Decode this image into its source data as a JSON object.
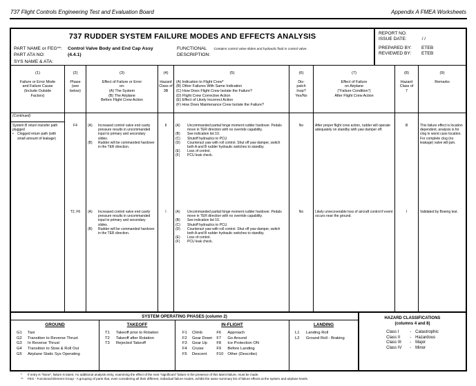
{
  "page_header": {
    "left": "737 Flight Controls Engineering Test and Evaluation Board",
    "right": "Appendix A   FMEA Worksheets"
  },
  "title_block": {
    "title": "737 RUDDER SYSTEM FAILURE MODES AND EFFECTS ANALYSIS",
    "part_name_label": "PART NAME or FEG**:",
    "part_name_value": "Control Valve Body and End Cap Assy",
    "part_ata_label": "PART ATA NO:",
    "part_ata_value": "(4.4.1)",
    "sys_label": "SYS NAME & ATA:",
    "functional_label_line1": "FUNCTIONAL",
    "functional_label_line2": "DESCRIPTION:",
    "functional_value": "Contains control valve slides and hydraulic fluid in control valve."
  },
  "report_box": {
    "report_no_label": "REPORT NO.",
    "issue_date_label": "ISSUE DATE:",
    "issue_date_value": "/   /",
    "prepared_label": "PREPARED BY:",
    "prepared_value": "ETEB",
    "reviewed_label": "REVIEWED BY:",
    "reviewed_value": "ETEB"
  },
  "table": {
    "headers": [
      {
        "num": "(1)",
        "text": "Failure or Error Mode\nand Failure Cause\n(Include Outside\nFactors)"
      },
      {
        "num": "(2)",
        "text": "Phase\n(see\nbelow)"
      },
      {
        "num": "(3)",
        "text": "Effect of Failure or Error\non:\n(A)  The System\n(B)  The Airplane\nBefore Flight Crew Action"
      },
      {
        "num": "(4)",
        "text": "Hazard\nClass of\n3B"
      },
      {
        "num": "(5)",
        "text": "(A)  Indication to Flight Crew*\n(B)  Other Failures With Same Indication\n(C)  How Does Flight Crew Isolate the Failure?\n(D)  Flight Crew Corrective Action\n(E)  Effect of Likely Incorrect Action\n(F)  How Does Maintenance Crew Isolate the Failure?"
      },
      {
        "num": "(6)",
        "text": "Dis-\npatch\nInop?\nYes/No"
      },
      {
        "num": "(7)",
        "text": "Effect of Failure\non Airplane\n(\"Failure Condition\")\nAfter Flight Crew Action"
      },
      {
        "num": "(8)",
        "text": "Hazard\nClass of\n7"
      },
      {
        "num": "(9)",
        "text": "Remarks"
      }
    ],
    "continued_label": "(Continued)",
    "rows": [
      {
        "failure_mode": {
          "title": "System B return transfer path plugged",
          "bullet_char": "•",
          "bullet_text": "Clogged return path (with small amount of leakage)"
        },
        "phase": "F4",
        "effect": [
          {
            "letter": "(A)",
            "text": "Increased control valve end cavity pressure results in uncommanded input to primary and secondary slides."
          },
          {
            "letter": "(B)",
            "text": "Rudder will be commanded hardover in the TER direction."
          }
        ],
        "hazard_3b": "II",
        "indication": [
          {
            "letter": "(A)",
            "text": "Uncommanded partial hinge moment rudder hardover. Pedals move in TER direction with no override capability."
          },
          {
            "letter": "(B)",
            "text": "See indication list 10."
          },
          {
            "letter": "(C)",
            "text": "Shutoff hydraulics to PCU."
          },
          {
            "letter": "(D)",
            "text": "Counteract yaw with roll control.  Shut off yaw damper, switch both A and B rudder hydraulic switches to standby."
          },
          {
            "letter": "(E)",
            "text": "Loss of control."
          },
          {
            "letter": "(F)",
            "text": "PCU leak check."
          }
        ],
        "dispatch": "No",
        "effect_after": "After proper flight crew action, rudder will operate adequately on standby with yaw damper off.",
        "hazard_7": "III",
        "remarks": "This failure effect is location dependent, analysis is for clog in worst case location. For complete clog (no leakage) valve will jam."
      },
      {
        "failure_mode": {
          "title": "",
          "bullet_char": "",
          "bullet_text": ""
        },
        "phase": "T2, F6",
        "effect": [
          {
            "letter": "(A)",
            "text": "Increased control valve end cavity pressure results in uncommanded input to primary and secondary slides."
          },
          {
            "letter": "(B)",
            "text": "Rudder will be commanded hardover in the TER direction."
          }
        ],
        "hazard_3b": "I",
        "indication": [
          {
            "letter": "(A)",
            "text": "Uncommanded partial hinge moment rudder hardover. Pedals move in TER direction with no override capability."
          },
          {
            "letter": "(B)",
            "text": "See indication list 10."
          },
          {
            "letter": "(C)",
            "text": "Shutoff hydraulics to PCU."
          },
          {
            "letter": "(D)",
            "text": "Counteract yaw with roll control.  Shut off yaw damper, switch both A and B rudder hydraulic switches to standby."
          },
          {
            "letter": "(E)",
            "text": "Loss of control."
          },
          {
            "letter": "(F)",
            "text": "PCU leak check."
          }
        ],
        "dispatch": "No",
        "effect_after": "Likely unrecoverable loss of aircraft control if event occurs near the ground.",
        "hazard_7": "I",
        "remarks": "Validated by Boeing test."
      }
    ]
  },
  "phases": {
    "header": "SYSTEM OPERATING PHASES (column 2)",
    "ground": {
      "title": "GROUND",
      "items": [
        {
          "code": "G1",
          "label": "Taxi"
        },
        {
          "code": "G2",
          "label": "Transition to Reverse Thrust"
        },
        {
          "code": "G3",
          "label": "In Reverse Thrust"
        },
        {
          "code": "G4",
          "label": "Transition to Stow & Roll Out"
        },
        {
          "code": "G5",
          "label": "Airplane Static Sys Operating"
        }
      ]
    },
    "takeoff": {
      "title": "TAKEOFF",
      "items": [
        {
          "code": "T1",
          "label": "Takeoff prior to Rotation"
        },
        {
          "code": "T2",
          "label": "Takeoff after Rotation"
        },
        {
          "code": "T3",
          "label": "Rejected Takeoff"
        }
      ]
    },
    "inflight": {
      "title": "IN-FLIGHT",
      "left": [
        {
          "code": "F1",
          "label": "Climb"
        },
        {
          "code": "F2",
          "label": "Gear Down"
        },
        {
          "code": "F3",
          "label": "Gear Up"
        },
        {
          "code": "F4",
          "label": "Cruise"
        },
        {
          "code": "F5",
          "label": "Descent"
        }
      ],
      "right": [
        {
          "code": "F6",
          "label": "Approach"
        },
        {
          "code": "F7",
          "label": "Go Around"
        },
        {
          "code": "F8",
          "label": "Ice Protection ON"
        },
        {
          "code": "F9",
          "label": "Before Landing"
        },
        {
          "code": "F10",
          "label": "Other (Describe)"
        }
      ]
    },
    "landing": {
      "title": "LANDING",
      "items": [
        {
          "code": "L1",
          "label": "Landing Roll"
        },
        {
          "code": "L2",
          "label": "Ground Roll - Braking"
        }
      ]
    }
  },
  "hazard_classifications": {
    "title_line1": "HAZARD CLASSIFICATIONS",
    "title_line2": "(columns 4 and 8)",
    "separator": "-",
    "classes": [
      {
        "label": "Class I",
        "desc": "Catastrophic"
      },
      {
        "label": "Class II",
        "desc": "Hazardous"
      },
      {
        "label": "Class III",
        "desc": "Major"
      },
      {
        "label": "Class IV",
        "desc": "Minor"
      }
    ]
  },
  "footnotes": [
    {
      "mark": "*",
      "text": "If entry is \"None\", failure is latent.  An additional analysis entry, examining the effect of the next \"significant\" failure in the presence of this latent failure, must be made."
    },
    {
      "mark": "**",
      "text": "FEG - Functional Element Group - A grouping of parts that, even considering all their different, individual failure modes, exhibit the same summary list of failure effects at the system and airplane levels."
    }
  ]
}
